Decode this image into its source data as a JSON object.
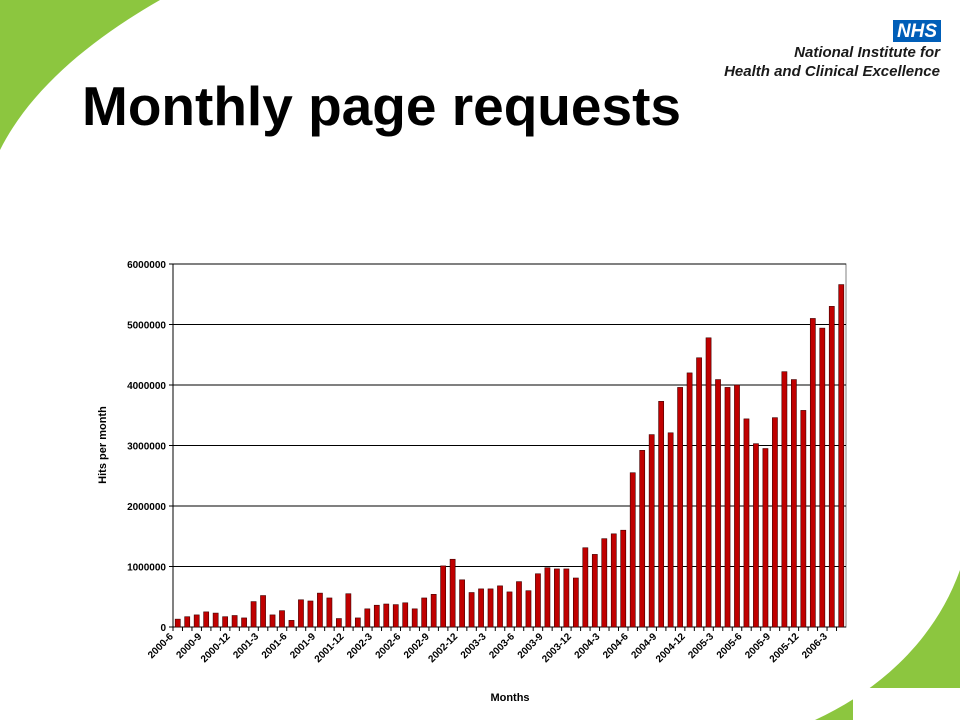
{
  "logo": {
    "badge": "NHS",
    "line1": "National Institute for",
    "line2": "Health and Clinical Excellence"
  },
  "chart_data": {
    "type": "bar",
    "title": "Monthly page requests",
    "x_label": "Months",
    "y_label": "Hits per month",
    "color": "#c00000",
    "grid": true,
    "categories": [
      "2000-6",
      null,
      null,
      "2000-9",
      null,
      null,
      "2000-12",
      null,
      null,
      "2001-3",
      null,
      null,
      "2001-6",
      null,
      null,
      "2001-9",
      null,
      null,
      "2001-12",
      null,
      null,
      "2002-3",
      null,
      null,
      "2002-6",
      null,
      null,
      "2002-9",
      null,
      null,
      "2002-12",
      null,
      null,
      "2003-3",
      null,
      null,
      "2003-6",
      null,
      null,
      "2003-9",
      null,
      null,
      "2003-12",
      null,
      null,
      "2004-3",
      null,
      null,
      "2004-6",
      null,
      null,
      "2004-9",
      null,
      null,
      "2004-12",
      null,
      null,
      "2005-3",
      null,
      null,
      "2005-6",
      null,
      null,
      "2005-9",
      null,
      null,
      "2005-12",
      null,
      null,
      "2006-3",
      null
    ],
    "values": [
      130000,
      170000,
      200000,
      250000,
      230000,
      170000,
      190000,
      150000,
      420000,
      520000,
      200000,
      270000,
      110000,
      450000,
      430000,
      560000,
      480000,
      140000,
      550000,
      150000,
      300000,
      360000,
      380000,
      370000,
      400000,
      300000,
      480000,
      540000,
      1010000,
      1120000,
      780000,
      570000,
      630000,
      630000,
      680000,
      580000,
      750000,
      600000,
      880000,
      980000,
      960000,
      960000,
      810000,
      1310000,
      1200000,
      1460000,
      1540000,
      1600000,
      2550000,
      2920000,
      3180000,
      3730000,
      3210000,
      3960000,
      4200000,
      4450000,
      4780000,
      4090000,
      3960000,
      4000000,
      3440000,
      3030000,
      2950000,
      3460000,
      4220000,
      4090000,
      3580000,
      5100000,
      4940000,
      5300000,
      5660000
    ],
    "ylim": [
      0,
      6000000
    ],
    "yticks": [
      0,
      1000000,
      2000000,
      3000000,
      4000000,
      5000000,
      6000000
    ]
  }
}
